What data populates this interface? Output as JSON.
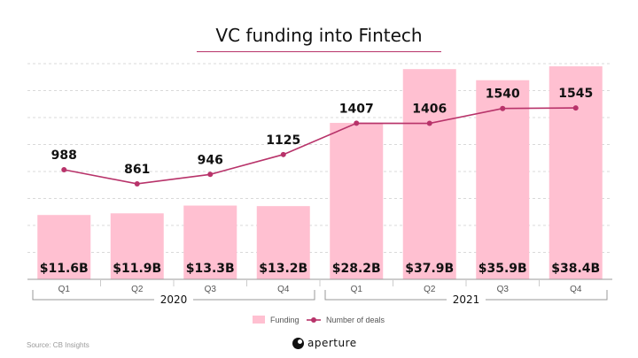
{
  "chart_data": {
    "type": "bar",
    "title": "VC funding into Fintech",
    "categories": [
      "Q1",
      "Q2",
      "Q3",
      "Q4",
      "Q1",
      "Q2",
      "Q3",
      "Q4"
    ],
    "groups": [
      {
        "label": "2020",
        "from": 0,
        "to": 3
      },
      {
        "label": "2021",
        "from": 4,
        "to": 7
      }
    ],
    "series": [
      {
        "name": "Funding",
        "type": "bar",
        "values": [
          11.6,
          11.9,
          13.3,
          13.2,
          28.2,
          37.9,
          35.9,
          38.4
        ],
        "labels": [
          "$11.6B",
          "$11.9B",
          "$13.3B",
          "$13.2B",
          "$28.2B",
          "$37.9B",
          "$35.9B",
          "$38.4B"
        ],
        "ylim": [
          0,
          40
        ]
      },
      {
        "name": "Number of deals",
        "type": "line",
        "values": [
          988,
          861,
          946,
          1125,
          1407,
          1406,
          1540,
          1545
        ],
        "labels": [
          "988",
          "861",
          "946",
          "1125",
          "1407",
          "1406",
          "1540",
          "1545"
        ],
        "ylim": [
          0,
          2000
        ]
      }
    ],
    "grid": true,
    "legend": "bottom"
  },
  "colors": {
    "bar": "#ffc0d1",
    "line": "#b8336a",
    "grid": "#d9d9d9",
    "text": "#111111"
  },
  "footer": {
    "source": "Source: CB Insights",
    "brand": "aperture"
  }
}
